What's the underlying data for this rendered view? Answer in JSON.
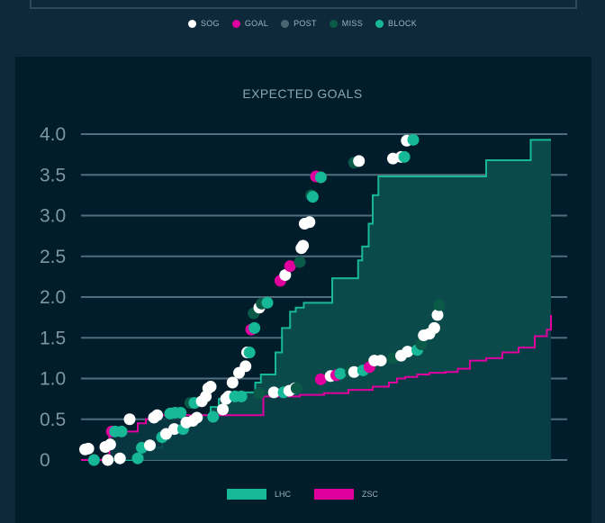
{
  "chart_data": {
    "type": "line",
    "title": "EXPECTED GOALS",
    "xlabel": "",
    "ylabel": "",
    "ylim": [
      0,
      4.0
    ],
    "xlim": [
      0,
      60
    ],
    "y_ticks": [
      "4.0",
      "3.5",
      "3.0",
      "2.5",
      "2.0",
      "1.5",
      "1.0",
      "0.5",
      "0"
    ],
    "y_tick_values": [
      4.0,
      3.5,
      3.0,
      2.5,
      2.0,
      1.5,
      1.0,
      0.5,
      0
    ],
    "grid": true,
    "shot_legend": [
      {
        "label": "SOG",
        "color": "#ffffff"
      },
      {
        "label": "GOAL",
        "color": "#e0009e"
      },
      {
        "label": "POST",
        "color": "#4a6472"
      },
      {
        "label": "MISS",
        "color": "#0b5a48"
      },
      {
        "label": "BLOCK",
        "color": "#17b897"
      }
    ],
    "series": [
      {
        "name": "LHC",
        "color": "#17b897",
        "fill": "#0b4a4a",
        "x": [
          0,
          1.5,
          6.0,
          6.7,
          7.7,
          10,
          11,
          12,
          13,
          14,
          15,
          16,
          17,
          18.5,
          21.5,
          22.2,
          24,
          24.8,
          25.8,
          26.5,
          27.5,
          28.5,
          31.0,
          34.2,
          34.7,
          35.5,
          36.0,
          36.7,
          37.5,
          38.5,
          39.5,
          40.5,
          45,
          50,
          51,
          51.5,
          55.5,
          58
        ],
        "values": [
          0,
          0,
          0,
          0.05,
          0.15,
          0.25,
          0.32,
          0.4,
          0.45,
          0.52,
          0.55,
          0.65,
          0.75,
          0.83,
          0.95,
          1.05,
          1.32,
          1.62,
          1.82,
          1.87,
          1.93,
          1.93,
          2.23,
          2.45,
          2.62,
          2.9,
          3.25,
          3.48,
          3.48,
          3.48,
          3.48,
          3.48,
          3.48,
          3.68,
          3.68,
          3.68,
          3.93,
          3.93
        ]
      },
      {
        "name": "ZSC",
        "color": "#e0009e",
        "fill": "#083b45",
        "x": [
          0,
          1.0,
          2.5,
          3.5,
          5.5,
          7,
          8,
          9,
          10.5,
          13,
          15,
          17,
          19.5,
          21,
          22.5,
          23.5,
          25,
          27,
          30,
          33,
          36,
          38,
          39,
          40,
          41.5,
          43,
          45,
          46.5,
          48,
          50,
          52,
          54,
          56,
          57.5,
          58
        ],
        "values": [
          0,
          0,
          0,
          0.33,
          0.35,
          0.45,
          0.5,
          0.55,
          0.55,
          0.55,
          0.55,
          0.55,
          0.55,
          0.55,
          0.78,
          0.78,
          0.78,
          0.8,
          0.82,
          0.86,
          0.9,
          0.95,
          1.0,
          1.02,
          1.05,
          1.07,
          1.08,
          1.12,
          1.22,
          1.25,
          1.32,
          1.38,
          1.52,
          1.6,
          1.78
        ]
      }
    ],
    "shots": [
      {
        "x": 0.5,
        "y": 0.13,
        "type": "SOG"
      },
      {
        "x": 0.9,
        "y": 0.14,
        "type": "SOG"
      },
      {
        "x": 1.6,
        "y": 0.0,
        "type": "BLOCK"
      },
      {
        "x": 3.0,
        "y": 0.16,
        "type": "SOG"
      },
      {
        "x": 3.6,
        "y": 0.19,
        "type": "SOG"
      },
      {
        "x": 3.3,
        "y": 0.0,
        "type": "SOG"
      },
      {
        "x": 3.8,
        "y": 0.35,
        "type": "GOAL"
      },
      {
        "x": 4.2,
        "y": 0.35,
        "type": "BLOCK"
      },
      {
        "x": 5.0,
        "y": 0.35,
        "type": "BLOCK"
      },
      {
        "x": 4.8,
        "y": 0.02,
        "type": "SOG"
      },
      {
        "x": 6.0,
        "y": 0.5,
        "type": "SOG"
      },
      {
        "x": 7.0,
        "y": 0.02,
        "type": "BLOCK"
      },
      {
        "x": 7.5,
        "y": 0.15,
        "type": "BLOCK"
      },
      {
        "x": 8.5,
        "y": 0.18,
        "type": "SOG"
      },
      {
        "x": 9.0,
        "y": 0.52,
        "type": "SOG"
      },
      {
        "x": 9.4,
        "y": 0.55,
        "type": "SOG"
      },
      {
        "x": 10.0,
        "y": 0.28,
        "type": "BLOCK"
      },
      {
        "x": 10.5,
        "y": 0.32,
        "type": "SOG"
      },
      {
        "x": 11.0,
        "y": 0.57,
        "type": "BLOCK"
      },
      {
        "x": 11.5,
        "y": 0.38,
        "type": "SOG"
      },
      {
        "x": 11.6,
        "y": 0.58,
        "type": "BLOCK"
      },
      {
        "x": 12.3,
        "y": 0.58,
        "type": "BLOCK"
      },
      {
        "x": 12.6,
        "y": 0.38,
        "type": "BLOCK"
      },
      {
        "x": 13.0,
        "y": 0.46,
        "type": "SOG"
      },
      {
        "x": 13.5,
        "y": 0.7,
        "type": "MISS"
      },
      {
        "x": 13.8,
        "y": 0.48,
        "type": "SOG"
      },
      {
        "x": 14.0,
        "y": 0.7,
        "type": "BLOCK"
      },
      {
        "x": 14.3,
        "y": 0.52,
        "type": "SOG"
      },
      {
        "x": 14.9,
        "y": 0.72,
        "type": "SOG"
      },
      {
        "x": 15.4,
        "y": 0.78,
        "type": "SOG"
      },
      {
        "x": 15.7,
        "y": 0.88,
        "type": "SOG"
      },
      {
        "x": 16.0,
        "y": 0.9,
        "type": "SOG"
      },
      {
        "x": 16.3,
        "y": 0.53,
        "type": "BLOCK"
      },
      {
        "x": 17.5,
        "y": 0.62,
        "type": "SOG"
      },
      {
        "x": 17.9,
        "y": 0.75,
        "type": "SOG"
      },
      {
        "x": 18.2,
        "y": 0.78,
        "type": "SOG"
      },
      {
        "x": 18.7,
        "y": 0.95,
        "type": "SOG"
      },
      {
        "x": 19.0,
        "y": 0.78,
        "type": "BLOCK"
      },
      {
        "x": 19.5,
        "y": 1.07,
        "type": "SOG"
      },
      {
        "x": 19.8,
        "y": 0.78,
        "type": "BLOCK"
      },
      {
        "x": 20.3,
        "y": 1.15,
        "type": "SOG"
      },
      {
        "x": 20.5,
        "y": 1.32,
        "type": "SOG"
      },
      {
        "x": 20.8,
        "y": 1.32,
        "type": "BLOCK"
      },
      {
        "x": 21.0,
        "y": 1.6,
        "type": "GOAL"
      },
      {
        "x": 21.4,
        "y": 1.62,
        "type": "BLOCK"
      },
      {
        "x": 21.3,
        "y": 1.8,
        "type": "MISS"
      },
      {
        "x": 22.0,
        "y": 0.82,
        "type": "MISS"
      },
      {
        "x": 22.0,
        "y": 1.87,
        "type": "SOG"
      },
      {
        "x": 22.3,
        "y": 1.92,
        "type": "MISS"
      },
      {
        "x": 23.0,
        "y": 1.93,
        "type": "BLOCK"
      },
      {
        "x": 23.8,
        "y": 0.83,
        "type": "SOG"
      },
      {
        "x": 24.6,
        "y": 2.2,
        "type": "GOAL"
      },
      {
        "x": 25.0,
        "y": 0.83,
        "type": "BLOCK"
      },
      {
        "x": 25.2,
        "y": 2.27,
        "type": "SOG"
      },
      {
        "x": 25.7,
        "y": 0.85,
        "type": "SOG"
      },
      {
        "x": 25.8,
        "y": 2.38,
        "type": "GOAL"
      },
      {
        "x": 26.4,
        "y": 0.88,
        "type": "SOG"
      },
      {
        "x": 26.6,
        "y": 0.88,
        "type": "MISS"
      },
      {
        "x": 27.0,
        "y": 2.43,
        "type": "MISS"
      },
      {
        "x": 27.2,
        "y": 2.6,
        "type": "SOG"
      },
      {
        "x": 27.4,
        "y": 2.63,
        "type": "SOG"
      },
      {
        "x": 27.6,
        "y": 2.9,
        "type": "SOG"
      },
      {
        "x": 28.2,
        "y": 2.92,
        "type": "SOG"
      },
      {
        "x": 28.4,
        "y": 3.25,
        "type": "MISS"
      },
      {
        "x": 28.6,
        "y": 3.23,
        "type": "BLOCK"
      },
      {
        "x": 29.0,
        "y": 3.48,
        "type": "GOAL"
      },
      {
        "x": 29.6,
        "y": 3.47,
        "type": "BLOCK"
      },
      {
        "x": 29.6,
        "y": 0.99,
        "type": "GOAL"
      },
      {
        "x": 30.8,
        "y": 1.03,
        "type": "SOG"
      },
      {
        "x": 31.5,
        "y": 1.04,
        "type": "GOAL"
      },
      {
        "x": 32.0,
        "y": 1.06,
        "type": "BLOCK"
      },
      {
        "x": 33.3,
        "y": 1.08,
        "type": "MISS"
      },
      {
        "x": 33.7,
        "y": 1.08,
        "type": "SOG"
      },
      {
        "x": 34.8,
        "y": 1.1,
        "type": "BLOCK"
      },
      {
        "x": 35.6,
        "y": 1.14,
        "type": "GOAL"
      },
      {
        "x": 36.2,
        "y": 1.22,
        "type": "SOG"
      },
      {
        "x": 37.0,
        "y": 1.22,
        "type": "SOG"
      },
      {
        "x": 33.7,
        "y": 3.65,
        "type": "MISS"
      },
      {
        "x": 34.3,
        "y": 3.67,
        "type": "SOG"
      },
      {
        "x": 38.5,
        "y": 1.25,
        "type": "MISS"
      },
      {
        "x": 39.5,
        "y": 1.28,
        "type": "SOG"
      },
      {
        "x": 40.3,
        "y": 1.33,
        "type": "SOG"
      },
      {
        "x": 41.5,
        "y": 1.35,
        "type": "BLOCK"
      },
      {
        "x": 42.0,
        "y": 1.42,
        "type": "MISS"
      },
      {
        "x": 42.3,
        "y": 1.53,
        "type": "SOG"
      },
      {
        "x": 43.0,
        "y": 1.55,
        "type": "SOG"
      },
      {
        "x": 43.6,
        "y": 1.62,
        "type": "SOG"
      },
      {
        "x": 44.0,
        "y": 1.78,
        "type": "SOG"
      },
      {
        "x": 44.2,
        "y": 1.9,
        "type": "MISS"
      },
      {
        "x": 38.5,
        "y": 3.7,
        "type": "SOG"
      },
      {
        "x": 39.5,
        "y": 3.72,
        "type": "SOG"
      },
      {
        "x": 39.9,
        "y": 3.72,
        "type": "BLOCK"
      },
      {
        "x": 40.2,
        "y": 3.92,
        "type": "SOG"
      },
      {
        "x": 41.0,
        "y": 3.93,
        "type": "BLOCK"
      }
    ]
  },
  "series_legend": [
    {
      "label": "LHC",
      "color": "#17b897"
    },
    {
      "label": "ZSC",
      "color": "#e0009e"
    }
  ]
}
